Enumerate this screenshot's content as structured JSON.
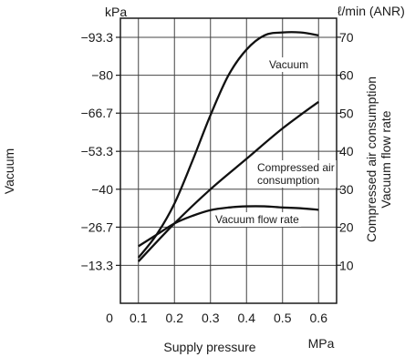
{
  "chart_data": {
    "type": "line",
    "xlabel": "Supply pressure",
    "x_unit": "MPa",
    "x_origin_label": "0",
    "x_ticks": [
      0.1,
      0.2,
      0.3,
      0.4,
      0.5,
      0.6
    ],
    "x_tick_labels": [
      "0.1",
      "0.2",
      "0.3",
      "0.4",
      "0.5",
      "0.6"
    ],
    "xlim": [
      0.05,
      0.65
    ],
    "left_axis": {
      "label": "Vacuum",
      "unit": "kPa",
      "ticks": [
        13.3,
        26.7,
        40,
        53.3,
        66.7,
        80,
        93.3
      ],
      "tick_labels": [
        "−13.3",
        "−26.7",
        "−40",
        "−53.3",
        "−66.7",
        "−80",
        "−93.3"
      ],
      "ylim": [
        0,
        100
      ]
    },
    "right_axis": {
      "label_line1": "Compressed air consumption",
      "label_line2": "Vacuum flow rate",
      "unit": "ℓ/min (ANR)",
      "ticks": [
        10,
        20,
        30,
        40,
        50,
        60,
        70
      ],
      "tick_labels": [
        "10",
        "20",
        "30",
        "40",
        "50",
        "60",
        "70"
      ],
      "ylim": [
        0,
        75
      ]
    },
    "grid": true,
    "series": [
      {
        "name": "Vacuum",
        "axis": "left",
        "annotation": [
          "Vacuum"
        ],
        "x": [
          0.1,
          0.15,
          0.2,
          0.25,
          0.3,
          0.35,
          0.4,
          0.45,
          0.5,
          0.55,
          0.6
        ],
        "y": [
          16,
          24,
          35,
          50,
          66,
          80,
          89,
          94,
          95,
          95,
          94
        ]
      },
      {
        "name": "Compressed air consumption",
        "axis": "right",
        "annotation": [
          "Compressed air",
          "consumption"
        ],
        "x": [
          0.1,
          0.2,
          0.3,
          0.4,
          0.5,
          0.6
        ],
        "y": [
          11,
          21,
          30,
          38,
          46,
          53
        ]
      },
      {
        "name": "Vacuum flow rate",
        "axis": "right",
        "annotation": [
          "Vacuum flow rate"
        ],
        "x": [
          0.1,
          0.15,
          0.2,
          0.25,
          0.3,
          0.35,
          0.4,
          0.45,
          0.5,
          0.55,
          0.6
        ],
        "y": [
          15,
          18,
          21,
          23,
          24.5,
          25.2,
          25.5,
          25.5,
          25.2,
          25,
          24.6
        ]
      }
    ]
  }
}
